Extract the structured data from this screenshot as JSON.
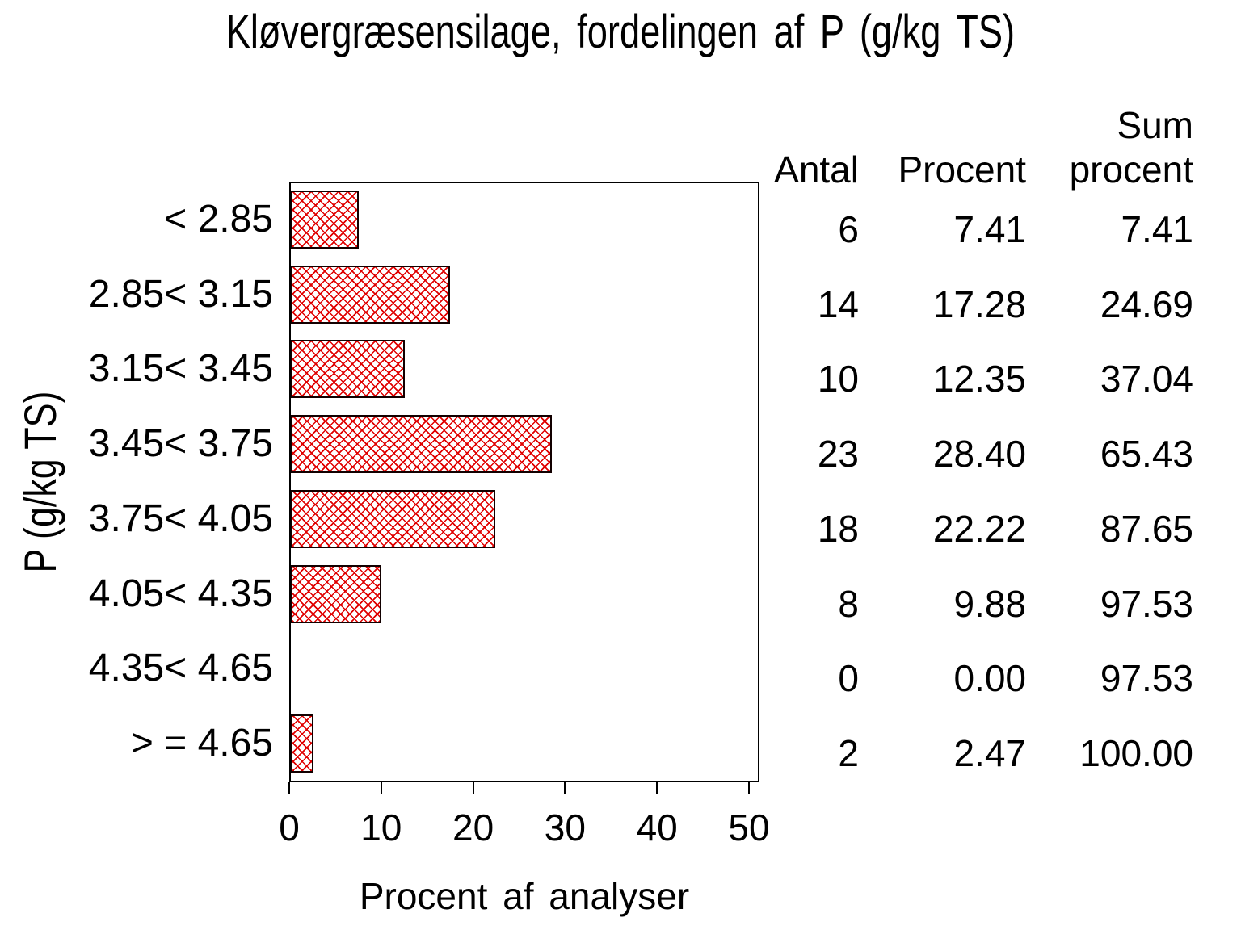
{
  "title": "Kløvergræsensilage, fordelingen af P (g/kg TS)",
  "chart_data": {
    "type": "bar",
    "orientation": "horizontal",
    "title": "Kløvergræsensilage, fordelingen af P (g/kg TS)",
    "categories": [
      "< 2.85",
      "2.85< 3.15",
      "3.15< 3.45",
      "3.45< 3.75",
      "3.75< 4.05",
      "4.05< 4.35",
      "4.35< 4.65",
      "> = 4.65"
    ],
    "values": [
      7.41,
      17.28,
      12.35,
      28.4,
      22.22,
      9.88,
      0.0,
      2.47
    ],
    "counts": [
      6,
      14,
      10,
      23,
      18,
      8,
      0,
      2
    ],
    "cum_percent": [
      7.41,
      24.69,
      37.04,
      65.43,
      87.65,
      97.53,
      97.53,
      100.0
    ],
    "xlabel": "Procent af analyser",
    "ylabel": "P (g/kg TS)",
    "xlim": [
      0,
      50
    ],
    "xticks": [
      0,
      10,
      20,
      30,
      40,
      50
    ],
    "grid": false,
    "legend": "none",
    "bar_fill_color": "#e00000",
    "bar_border_color": "#120000",
    "bar_pattern": "crosshatch"
  },
  "axis": {
    "xlabel": "Procent af analyser",
    "ylabel": "P (g/kg TS)",
    "tick_labels": [
      "0",
      "10",
      "20",
      "30",
      "40",
      "50"
    ]
  },
  "table": {
    "headers": {
      "antal": "Antal",
      "procent": "Procent",
      "sum_line1": "Sum",
      "sum_line2": "procent"
    },
    "rows": [
      {
        "label": "< 2.85",
        "antal": "6",
        "procent": "7.41",
        "sum": "7.41"
      },
      {
        "label": "2.85< 3.15",
        "antal": "14",
        "procent": "17.28",
        "sum": "24.69"
      },
      {
        "label": "3.15< 3.45",
        "antal": "10",
        "procent": "12.35",
        "sum": "37.04"
      },
      {
        "label": "3.45< 3.75",
        "antal": "23",
        "procent": "28.40",
        "sum": "65.43"
      },
      {
        "label": "3.75< 4.05",
        "antal": "18",
        "procent": "22.22",
        "sum": "87.65"
      },
      {
        "label": "4.05< 4.35",
        "antal": "8",
        "procent": "9.88",
        "sum": "97.53"
      },
      {
        "label": "4.35< 4.65",
        "antal": "0",
        "procent": "0.00",
        "sum": "97.53"
      },
      {
        "label": "> = 4.65",
        "antal": "2",
        "procent": "2.47",
        "sum": "100.00"
      }
    ]
  }
}
